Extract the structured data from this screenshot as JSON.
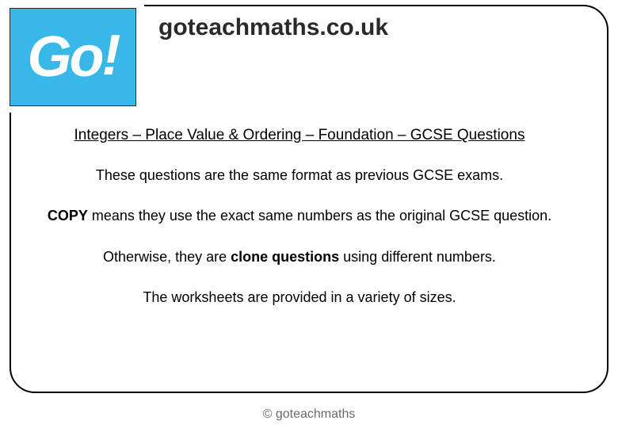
{
  "logo": {
    "text": "Go",
    "exclaim": "!",
    "bg_color": "#38b8e8",
    "text_color": "#ffffff"
  },
  "site_title": "goteachmaths.co.uk",
  "heading": "Integers – Place Value & Ordering – Foundation – GCSE Questions",
  "line1": "These questions are the same format as previous GCSE exams.",
  "line2_prefix": "COPY",
  "line2_rest": " means they use the exact same numbers as the original GCSE question.",
  "line3_prefix": "Otherwise, they are ",
  "line3_bold": "clone questions",
  "line3_suffix": " using different numbers.",
  "line4": "The worksheets are provided in a variety of sizes.",
  "footer": "© goteachmaths",
  "colors": {
    "frame_border": "#000000",
    "background": "#ffffff",
    "text": "#000000",
    "footer_text": "#6a6a6a"
  },
  "frame": {
    "border_radius": 32,
    "border_width": 2
  }
}
